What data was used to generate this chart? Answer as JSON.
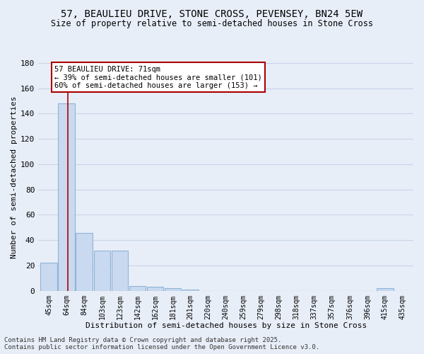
{
  "title1": "57, BEAULIEU DRIVE, STONE CROSS, PEVENSEY, BN24 5EW",
  "title2": "Size of property relative to semi-detached houses in Stone Cross",
  "xlabel": "Distribution of semi-detached houses by size in Stone Cross",
  "ylabel": "Number of semi-detached properties",
  "categories": [
    "45sqm",
    "64sqm",
    "84sqm",
    "103sqm",
    "123sqm",
    "142sqm",
    "162sqm",
    "181sqm",
    "201sqm",
    "220sqm",
    "240sqm",
    "259sqm",
    "279sqm",
    "298sqm",
    "318sqm",
    "337sqm",
    "357sqm",
    "376sqm",
    "396sqm",
    "415sqm",
    "435sqm"
  ],
  "values": [
    22,
    148,
    46,
    32,
    32,
    4,
    3,
    2,
    1,
    0,
    0,
    0,
    0,
    0,
    0,
    0,
    0,
    0,
    0,
    2,
    0
  ],
  "bar_color": "#c9d9ef",
  "bar_edge_color": "#8fb4d9",
  "red_line_color": "#aa0000",
  "red_line_x": 1.05,
  "annotation_line1": "57 BEAULIEU DRIVE: 71sqm",
  "annotation_line2": "← 39% of semi-detached houses are smaller (101)",
  "annotation_line3": "60% of semi-detached houses are larger (153) →",
  "ylim": [
    0,
    180
  ],
  "yticks": [
    0,
    20,
    40,
    60,
    80,
    100,
    120,
    140,
    160,
    180
  ],
  "background_color": "#e8eef8",
  "grid_color": "#c8d4e8",
  "footer1": "Contains HM Land Registry data © Crown copyright and database right 2025.",
  "footer2": "Contains public sector information licensed under the Open Government Licence v3.0."
}
